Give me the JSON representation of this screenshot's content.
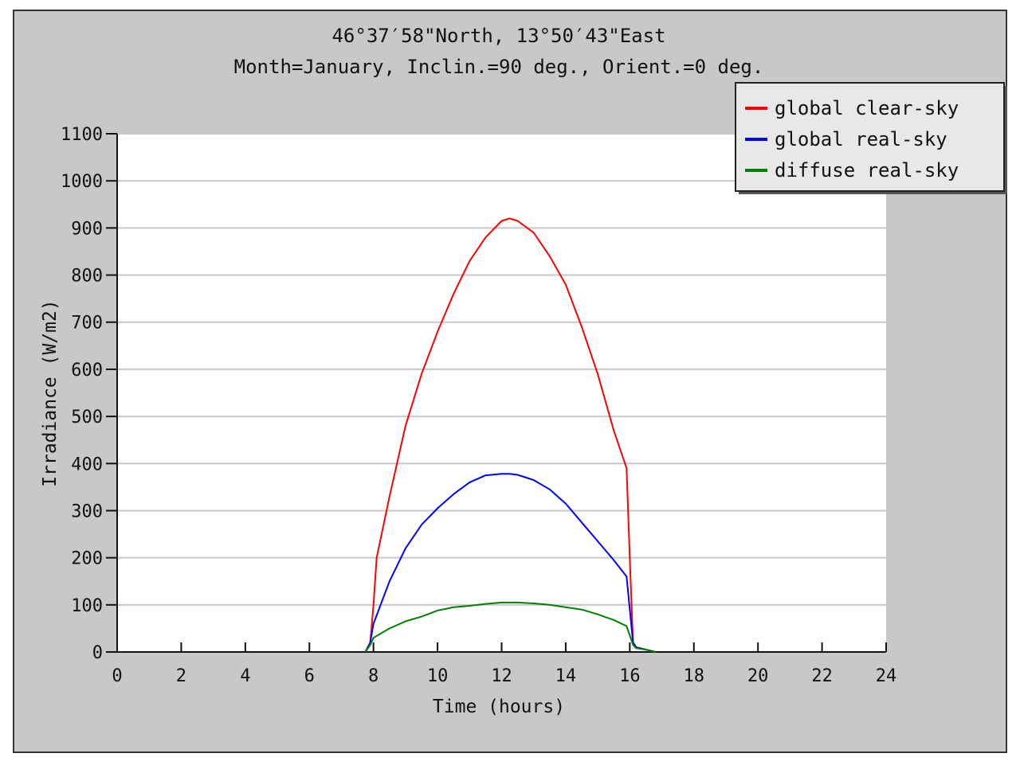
{
  "chart_data": {
    "type": "line",
    "title": "46°37′58\"North, 13°50′43\"East",
    "subtitle": "Month=January, Inclin.=90 deg., Orient.=0 deg.",
    "xlabel": "Time (hours)",
    "ylabel": "Irradiance (W/m2)",
    "xlim": [
      0,
      24
    ],
    "ylim": [
      0,
      1100
    ],
    "xticks": [
      0,
      2,
      4,
      6,
      8,
      10,
      12,
      14,
      16,
      18,
      20,
      22,
      24
    ],
    "yticks": [
      0,
      100,
      200,
      300,
      400,
      500,
      600,
      700,
      800,
      900,
      1000,
      1100
    ],
    "grid": "horizontal",
    "legend_position": "top-right",
    "series": [
      {
        "name": "global clear-sky",
        "color": "#ff0000",
        "x": [
          7.75,
          7.9,
          8.0,
          8.1,
          8.5,
          9.0,
          9.5,
          10.0,
          10.5,
          11.0,
          11.5,
          12.0,
          12.25,
          12.5,
          13.0,
          13.5,
          14.0,
          14.5,
          15.0,
          15.5,
          15.9,
          16.0,
          16.1,
          16.2,
          16.5,
          16.8
        ],
        "y": [
          0,
          20,
          100,
          200,
          330,
          480,
          590,
          680,
          760,
          830,
          880,
          915,
          920,
          915,
          890,
          840,
          780,
          690,
          590,
          470,
          390,
          200,
          20,
          10,
          5,
          0
        ]
      },
      {
        "name": "global real-sky",
        "color": "#0000ff",
        "x": [
          7.75,
          7.9,
          8.0,
          8.5,
          9.0,
          9.5,
          10.0,
          10.5,
          11.0,
          11.5,
          12.0,
          12.25,
          12.5,
          13.0,
          13.5,
          14.0,
          14.5,
          15.0,
          15.5,
          15.9,
          16.1,
          16.2,
          16.5,
          16.8
        ],
        "y": [
          0,
          20,
          60,
          150,
          220,
          270,
          305,
          335,
          360,
          375,
          378,
          378,
          376,
          365,
          345,
          315,
          275,
          235,
          195,
          160,
          20,
          10,
          5,
          0
        ]
      },
      {
        "name": "diffuse real-sky",
        "color": "#008000",
        "x": [
          7.75,
          7.9,
          8.0,
          8.5,
          9.0,
          9.5,
          10.0,
          10.5,
          11.0,
          11.5,
          12.0,
          12.5,
          13.0,
          13.5,
          14.0,
          14.5,
          15.0,
          15.5,
          15.9,
          16.1,
          16.2,
          16.5,
          16.8
        ],
        "y": [
          0,
          15,
          30,
          50,
          65,
          75,
          88,
          95,
          98,
          102,
          105,
          105,
          103,
          100,
          95,
          90,
          80,
          68,
          55,
          15,
          8,
          5,
          0
        ]
      }
    ]
  }
}
